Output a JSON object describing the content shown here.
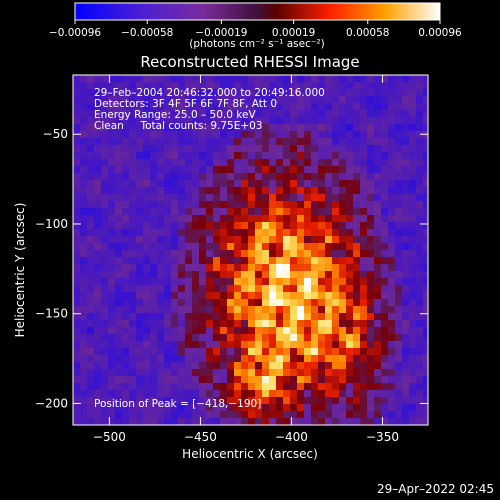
{
  "chart_data": {
    "type": "heatmap",
    "title": "Reconstructed RHESSI Image",
    "xlabel": "Heliocentric X (arcsec)",
    "ylabel": "Heliocentric Y (arcsec)",
    "xlim": [
      -520,
      -325
    ],
    "ylim": [
      -212,
      -17
    ],
    "x_ticks": [
      -500,
      -450,
      -400,
      -350
    ],
    "y_ticks": [
      -50,
      -100,
      -150,
      -200
    ],
    "x_tick_labels": [
      "−500",
      "−450",
      "−400",
      "−350"
    ],
    "y_tick_labels": [
      "−50",
      "−100",
      "−150",
      "−200"
    ],
    "colorbar": {
      "range": [
        -0.00096,
        0.00096
      ],
      "tick_values": [
        -0.00096,
        -0.00058,
        -0.00019,
        0.00019,
        0.00058,
        0.00096
      ],
      "tick_labels": [
        "−0.00096",
        "−0.00058",
        "−0.00019",
        "0.00019",
        "0.00058",
        "0.00096"
      ],
      "units_label": "(photons cm⁻² s⁻¹ asec⁻²)"
    },
    "annotations": {
      "time_range": "29–Feb–2004 20:46:32.000 to 20:49:16.000",
      "detectors": "Detectors: 3F 4F 5F 6F 7F 8F, Att 0",
      "energy_range": "Energy Range: 25.0 – 50.0 keV",
      "method": "Clean     Total counts: 9.75E+03",
      "peak": "Position of Peak = [−418,−190]"
    },
    "peak_position": [
      -418,
      -190
    ]
  },
  "footer_timestamp": "29–Apr–2022 02:45",
  "colors": {
    "background": "#000000",
    "text": "#ffffff"
  }
}
